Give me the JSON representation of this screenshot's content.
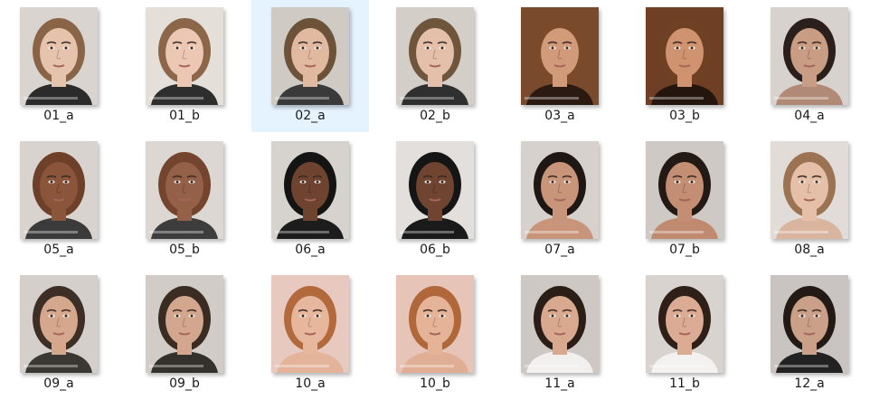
{
  "files": [
    {
      "name": "01_a",
      "bg": "#d9d4cf",
      "skin": "#e6c3ad",
      "hair": "#8a6446",
      "shirt": "#2b2b2b",
      "selected": false
    },
    {
      "name": "01_b",
      "bg": "#e4dfd9",
      "skin": "#ecc7b3",
      "hair": "#8c6648",
      "shirt": "#2e2e2e",
      "selected": false
    },
    {
      "name": "02_a",
      "bg": "#cfcac3",
      "skin": "#e0b9a0",
      "hair": "#6b5238",
      "shirt": "#3a3a3a",
      "selected": true
    },
    {
      "name": "02_b",
      "bg": "#d3cec8",
      "skin": "#e4c0aa",
      "hair": "#6e553b",
      "shirt": "#2f2f2f",
      "selected": false
    },
    {
      "name": "03_a",
      "bg": "#7a4a2c",
      "skin": "#d19a78",
      "hair": "#7a4a2a",
      "shirt": "#2a1a12",
      "selected": false
    },
    {
      "name": "03_b",
      "bg": "#6e3f24",
      "skin": "#cf9370",
      "hair": "#6f4124",
      "shirt": "#24150e",
      "selected": false
    },
    {
      "name": "04_a",
      "bg": "#d8d2ce",
      "skin": "#c99c84",
      "hair": "#2a1f1b",
      "shirt": "#b08a76",
      "selected": false
    },
    {
      "name": "05_a",
      "bg": "#d8d3cf",
      "skin": "#8a553a",
      "hair": "#6e3f29",
      "shirt": "#3b3b3b",
      "selected": false
    },
    {
      "name": "05_b",
      "bg": "#dcd7d2",
      "skin": "#946048",
      "hair": "#74442e",
      "shirt": "#3d3d3d",
      "selected": false
    },
    {
      "name": "06_a",
      "bg": "#d6d2ce",
      "skin": "#6e4430",
      "hair": "#141414",
      "shirt": "#1c1c1c",
      "selected": false
    },
    {
      "name": "06_b",
      "bg": "#e2dfdc",
      "skin": "#6f4430",
      "hair": "#151515",
      "shirt": "#1a1a1a",
      "selected": false
    },
    {
      "name": "07_a",
      "bg": "#d7d1cd",
      "skin": "#c8957a",
      "hair": "#1f1713",
      "shirt": "#c8957a",
      "selected": false
    },
    {
      "name": "07_b",
      "bg": "#cfc9c5",
      "skin": "#c38e74",
      "hair": "#231915",
      "shirt": "#c08a70",
      "selected": false
    },
    {
      "name": "08_a",
      "bg": "#e1dcd8",
      "skin": "#e5bfa8",
      "hair": "#9b7352",
      "shirt": "#d9b49e",
      "selected": false
    },
    {
      "name": "09_a",
      "bg": "#d4cfcb",
      "skin": "#d5a88d",
      "hair": "#3d2f25",
      "shirt": "#3b3733",
      "selected": false
    },
    {
      "name": "09_b",
      "bg": "#d1ccc8",
      "skin": "#d3a78d",
      "hair": "#3a2c22",
      "shirt": "#34302c",
      "selected": false
    },
    {
      "name": "10_a",
      "bg": "#e8c9bf",
      "skin": "#e7b79d",
      "hair": "#b26a3c",
      "shirt": "#e3b39a",
      "selected": false
    },
    {
      "name": "10_b",
      "bg": "#e6c4b8",
      "skin": "#e4b398",
      "hair": "#b0683b",
      "shirt": "#dfae94",
      "selected": false
    },
    {
      "name": "11_a",
      "bg": "#cdc8c4",
      "skin": "#d9a98f",
      "hair": "#2b1e17",
      "shirt": "#f2f0ee",
      "selected": false
    },
    {
      "name": "11_b",
      "bg": "#d8d3cf",
      "skin": "#dcab93",
      "hair": "#2e2019",
      "shirt": "#f4f2f0",
      "selected": false
    },
    {
      "name": "12_a",
      "bg": "#c9c4c1",
      "skin": "#caa088",
      "hair": "#231a15",
      "shirt": "#222222",
      "selected": false
    }
  ]
}
